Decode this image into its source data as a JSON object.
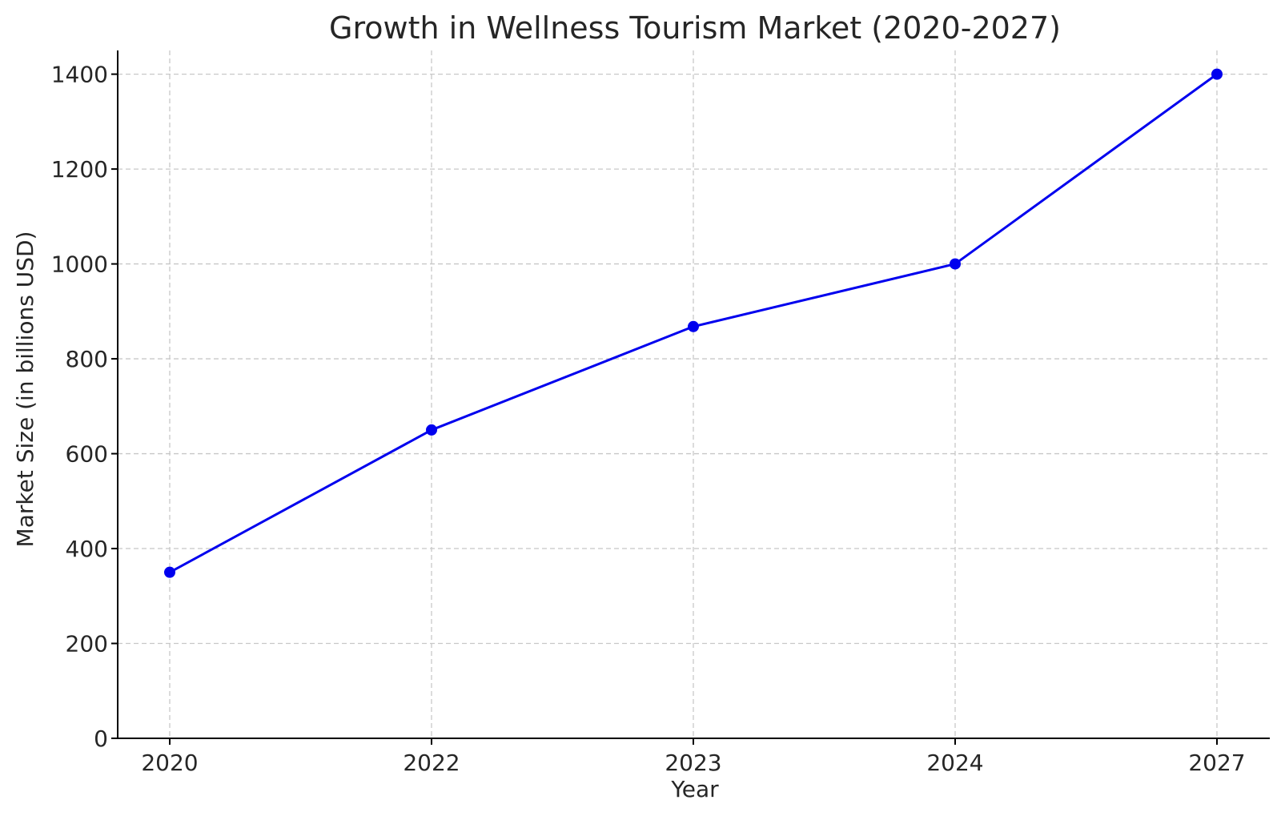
{
  "chart_data": {
    "type": "line",
    "title": "Growth in Wellness Tourism Market (2020-2027)",
    "xlabel": "Year",
    "ylabel": "Market Size (in billions USD)",
    "categories": [
      "2020",
      "2022",
      "2023",
      "2024",
      "2027"
    ],
    "values": [
      350,
      650,
      868,
      1000,
      1400
    ],
    "ylim": [
      0,
      1450
    ],
    "yticks": [
      0,
      200,
      400,
      600,
      800,
      1000,
      1200,
      1400
    ],
    "grid": true,
    "x_scale": "categorical",
    "line_color": "#0000ee",
    "marker": "circle"
  }
}
